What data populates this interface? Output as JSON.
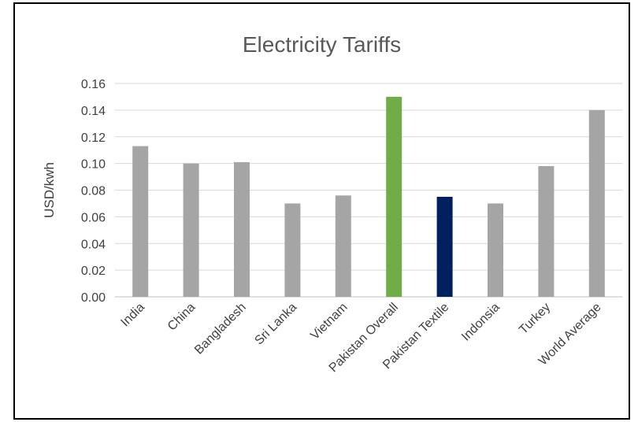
{
  "chart_data": {
    "type": "bar",
    "title": "Electricity Tariffs",
    "ylabel": "USD/kwh",
    "xlabel": "",
    "categories": [
      "India",
      "China",
      "Bangladesh",
      "Sri Lanka",
      "Vietnam",
      "Pakistan Overall",
      "Pakistan Textile",
      "Indonsia",
      "Turkey",
      "World Average"
    ],
    "values": [
      0.113,
      0.1,
      0.101,
      0.07,
      0.076,
      0.15,
      0.075,
      0.07,
      0.098,
      0.14
    ],
    "bar_colors": [
      "#a5a5a5",
      "#a5a5a5",
      "#a5a5a5",
      "#a5a5a5",
      "#a5a5a5",
      "#70ad47",
      "#002060",
      "#a5a5a5",
      "#a5a5a5",
      "#a5a5a5"
    ],
    "ylim": [
      0,
      0.16
    ],
    "yticks": [
      "0.00",
      "0.02",
      "0.04",
      "0.06",
      "0.08",
      "0.10",
      "0.12",
      "0.14",
      "0.16"
    ],
    "grid": true,
    "legend": "none"
  }
}
